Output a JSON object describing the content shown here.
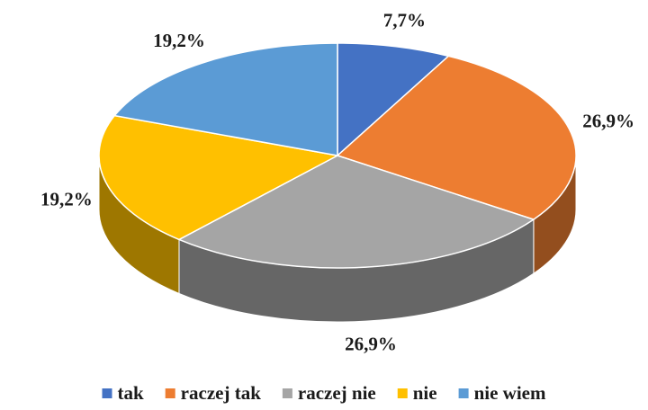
{
  "chart_data": {
    "type": "pie3d",
    "categories": [
      "tak",
      "raczej tak",
      "raczej nie",
      "nie",
      "nie wiem"
    ],
    "values": [
      7.7,
      26.9,
      26.9,
      19.2,
      19.2
    ],
    "value_labels": [
      "7,7%",
      "26,9%",
      "26,9%",
      "19,2%",
      "19,2%"
    ],
    "colors": [
      "#4472c4",
      "#ed7d31",
      "#a5a5a5",
      "#ffc000",
      "#5b9bd5"
    ],
    "legend": "bottom"
  }
}
